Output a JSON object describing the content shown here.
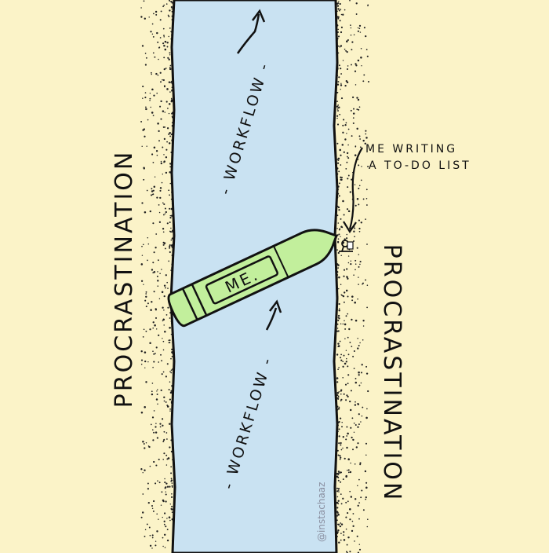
{
  "comic": {
    "left_bank_label": "PROCRASTINATION",
    "right_bank_label": "PROCRASTINATION",
    "workflow_upper": "- WORKFLOW -",
    "workflow_lower": "- WORKFLOW -",
    "boat_label": "ME.",
    "annotation_line1": "ME WRITING",
    "annotation_line2": "A TO-DO LIST",
    "credit": "@instachaaz"
  },
  "colors": {
    "sand": "#fbf3c8",
    "river": "#c9e2f2",
    "boat": "#c2ef9c",
    "ink": "#111111"
  }
}
